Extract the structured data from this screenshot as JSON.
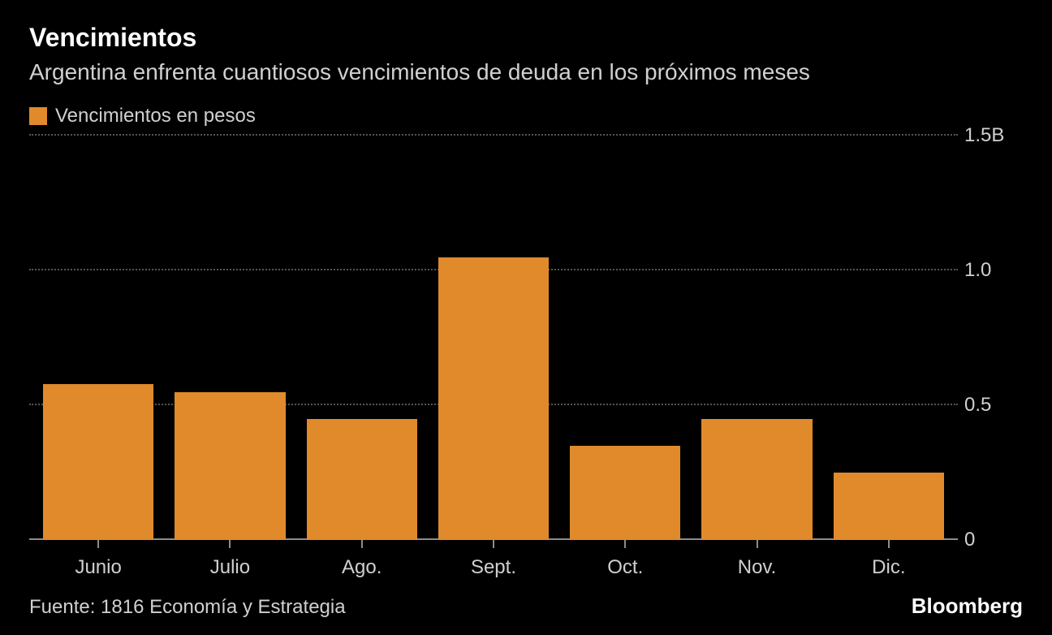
{
  "header": {
    "title": "Vencimientos",
    "subtitle": "Argentina enfrenta cuantiosos vencimientos de deuda en los próximos meses"
  },
  "legend": {
    "items": [
      {
        "label": "Vencimientos en pesos",
        "color": "#e08a2c"
      }
    ]
  },
  "chart": {
    "type": "bar",
    "categories": [
      "Junio",
      "Julio",
      "Ago.",
      "Sept.",
      "Oct.",
      "Nov.",
      "Dic."
    ],
    "values": [
      0.58,
      0.55,
      0.45,
      1.05,
      0.35,
      0.45,
      0.25
    ],
    "bar_color": "#e08a2c",
    "bar_width_pct": 84,
    "ylim": [
      0,
      1.5
    ],
    "yticks": [
      {
        "value": 0,
        "label": "0"
      },
      {
        "value": 0.5,
        "label": "0.5"
      },
      {
        "value": 1.0,
        "label": "1.0"
      },
      {
        "value": 1.5,
        "label": "1.5B"
      }
    ],
    "background_color": "#000000",
    "grid_color": "#555555",
    "axis_color": "#8c8c8c",
    "text_color": "#d0d0d0",
    "tick_fontsize": 24,
    "title_fontsize": 32,
    "subtitle_fontsize": 28
  },
  "footer": {
    "source": "Fuente: 1816 Economía y Estrategia",
    "brand": "Bloomberg"
  }
}
